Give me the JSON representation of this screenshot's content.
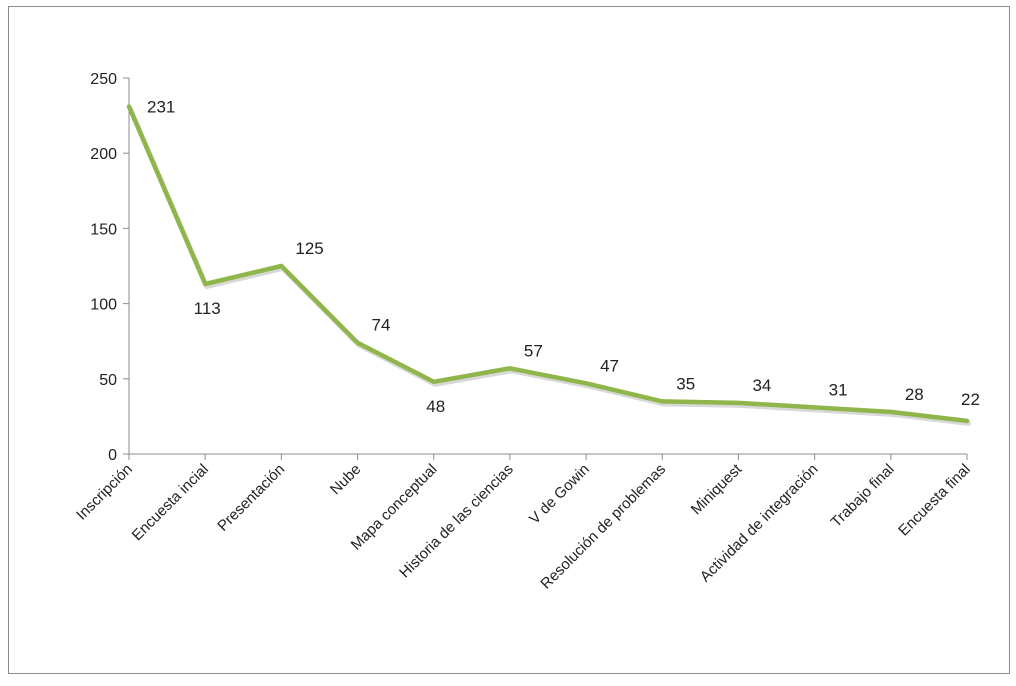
{
  "chart_data": {
    "type": "line",
    "title": "",
    "xlabel": "",
    "ylabel": "",
    "ylim": [
      0,
      250
    ],
    "yticks": [
      0,
      50,
      100,
      150,
      200,
      250
    ],
    "grid": false,
    "legend": "none",
    "categories": [
      "Inscripción",
      "Encuesta incial",
      "Presentación",
      "Nube",
      "Mapa conceptual",
      "Historia de las ciencias",
      "V de Gowin",
      "Resolución de problemas",
      "Miniquest",
      "Actividad de integración",
      "Trabajo final",
      "Encuesta final"
    ],
    "series": [
      {
        "values": [
          231,
          113,
          125,
          74,
          48,
          57,
          47,
          35,
          34,
          31,
          28,
          22
        ],
        "color": "#8fb64a",
        "shadow_color": "#c8c8c8"
      }
    ],
    "data_labels": [
      "231",
      "113",
      "125",
      "74",
      "48",
      "57",
      "47",
      "35",
      "34",
      "31",
      "28",
      "22"
    ],
    "axis_color": "#8c8c8c"
  }
}
